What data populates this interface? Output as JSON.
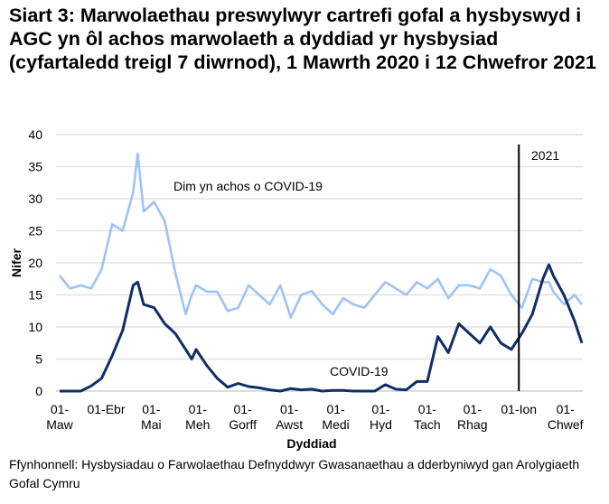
{
  "chart_data": {
    "type": "line",
    "title": "Siart 3: Marwolaethau preswylwyr cartrefi gofal a hysbyswyd i AGC yn ôl achos marwolaeth a dyddiad yr hysbysiad (cyfartaledd treigl 7 diwrnod), 1 Mawrth 2020 i 12 Chwefror 2021",
    "xlabel": "Dyddiad",
    "ylabel": "Nifer",
    "ylim": [
      0,
      40
    ],
    "yticks": [
      0,
      5,
      10,
      15,
      20,
      25,
      30,
      35,
      40
    ],
    "xlim": [
      "2020-03-01",
      "2021-02-12"
    ],
    "xticks": [
      {
        "date": "2020-03-01",
        "lines": [
          "01-",
          "Maw"
        ]
      },
      {
        "date": "2020-04-01",
        "lines": [
          "01-Ebr"
        ]
      },
      {
        "date": "2020-05-01",
        "lines": [
          "01-",
          "Mai"
        ]
      },
      {
        "date": "2020-06-01",
        "lines": [
          "01-",
          "Meh"
        ]
      },
      {
        "date": "2020-07-01",
        "lines": [
          "01-",
          "Gorff"
        ]
      },
      {
        "date": "2020-08-01",
        "lines": [
          "01-",
          "Awst"
        ]
      },
      {
        "date": "2020-09-01",
        "lines": [
          "01-",
          "Medi"
        ]
      },
      {
        "date": "2020-10-01",
        "lines": [
          "01-",
          "Hyd"
        ]
      },
      {
        "date": "2020-11-01",
        "lines": [
          "01-",
          "Tach"
        ]
      },
      {
        "date": "2020-12-01",
        "lines": [
          "01-",
          "Rhag"
        ]
      },
      {
        "date": "2021-01-01",
        "lines": [
          "01-Ion"
        ]
      },
      {
        "date": "2021-02-01",
        "lines": [
          "01-",
          "Chwef"
        ]
      }
    ],
    "grid": true,
    "x": [
      "2020-03-01",
      "2020-03-08",
      "2020-03-15",
      "2020-03-22",
      "2020-03-29",
      "2020-04-05",
      "2020-04-12",
      "2020-04-19",
      "2020-04-22",
      "2020-04-26",
      "2020-05-03",
      "2020-05-10",
      "2020-05-17",
      "2020-05-24",
      "2020-05-28",
      "2020-05-31",
      "2020-06-07",
      "2020-06-14",
      "2020-06-21",
      "2020-06-28",
      "2020-07-05",
      "2020-07-12",
      "2020-07-19",
      "2020-07-26",
      "2020-08-02",
      "2020-08-09",
      "2020-08-16",
      "2020-08-23",
      "2020-08-30",
      "2020-09-06",
      "2020-09-13",
      "2020-09-20",
      "2020-09-27",
      "2020-10-04",
      "2020-10-11",
      "2020-10-18",
      "2020-10-25",
      "2020-11-01",
      "2020-11-08",
      "2020-11-15",
      "2020-11-22",
      "2020-11-29",
      "2020-12-06",
      "2020-12-13",
      "2020-12-20",
      "2020-12-27",
      "2021-01-03",
      "2021-01-10",
      "2021-01-17",
      "2021-01-21",
      "2021-01-24",
      "2021-01-31",
      "2021-02-07",
      "2021-02-12"
    ],
    "series": [
      {
        "name": "Dim yn achos o COVID-19",
        "color": "#9dc3f7",
        "values": [
          18,
          16,
          16.5,
          16,
          19,
          26,
          25,
          31,
          37,
          28,
          29.5,
          26.5,
          18.5,
          12,
          15,
          16.5,
          15.5,
          15.5,
          12.5,
          13,
          16.5,
          15,
          13.5,
          16.5,
          11.5,
          15,
          15.6,
          13.5,
          12,
          14.5,
          13.5,
          13,
          15,
          17,
          16,
          15,
          17,
          16,
          17.5,
          14.5,
          16.5,
          16.5,
          16,
          19,
          18,
          15,
          13,
          17.5,
          17,
          17,
          15.5,
          13.5,
          15,
          13.5
        ]
      },
      {
        "name": "COVID-19",
        "color": "#0f2e66",
        "values": [
          0,
          0,
          0,
          0.8,
          2,
          5.5,
          9.5,
          16.5,
          17,
          13.5,
          13,
          10.5,
          9,
          6.5,
          5,
          6.5,
          4,
          2,
          0.6,
          1.2,
          0.7,
          0.5,
          0.2,
          0,
          0.4,
          0.2,
          0.3,
          0,
          0.1,
          0.1,
          0,
          0,
          0,
          1,
          0.3,
          0.2,
          1.5,
          1.5,
          8.5,
          6,
          10.5,
          9,
          7.5,
          10,
          7.5,
          6.5,
          9,
          12,
          17.5,
          19.7,
          18,
          15,
          11,
          7.5
        ]
      }
    ],
    "annotations": [
      {
        "text": "Dim yn achos o COVID-19",
        "series": "Dim yn achos o COVID-19"
      },
      {
        "text": "COVID-19",
        "series": "COVID-19"
      },
      {
        "text": "2021",
        "marker_date": "2021-01-01"
      }
    ]
  },
  "source": "Ffynhonnell: Hysbysiadau o Farwolaethau Defnyddwyr Gwasanaethau a dderbyniwyd gan Arolygiaeth Gofal Cymru"
}
